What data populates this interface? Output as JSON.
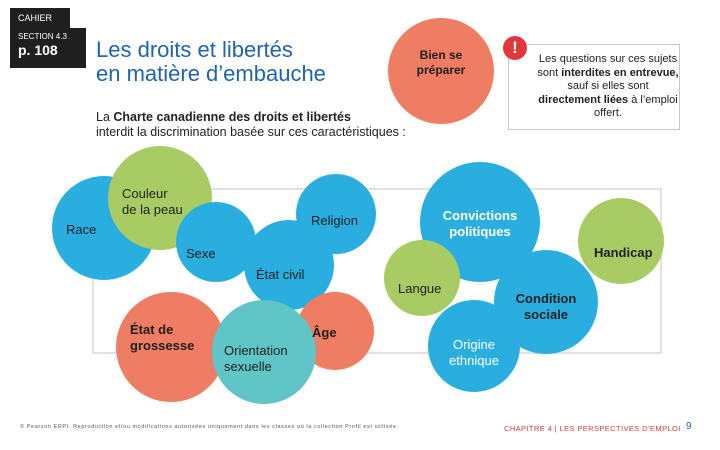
{
  "header": {
    "cahier": "CAHIER",
    "section": "SECTION 4.3",
    "page_ref": "p. 108"
  },
  "title": {
    "line1": "Les droits et libertés",
    "line2": "en matière d’embauche"
  },
  "prep_badge": {
    "line1": "Bien se",
    "line2": "préparer"
  },
  "warning": {
    "icon_glyph": "!",
    "p1": "Les questions sur ces sujets sont ",
    "b1": "interdites en entrevue,",
    "p2": " sauf si elles sont ",
    "b2": "directement liées",
    "p3": " à l’emploi offert."
  },
  "intro": {
    "p1": "La ",
    "bold": "Charte canadienne des droits et libertés",
    "p2": "interdit la discrimination basée sur ces caractéristiques :"
  },
  "characteristics": {
    "race": "Race",
    "couleur_1": "Couleur",
    "couleur_2": "de la peau",
    "religion": "Religion",
    "convictions_1": "Convictions",
    "convictions_2": "politiques",
    "sexe": "Sexe",
    "handicap": "Handicap",
    "etat_civil": "État civil",
    "langue": "Langue",
    "condition_1": "Condition",
    "condition_2": "sociale",
    "grossesse_1": "État de",
    "grossesse_2": "grossesse",
    "age": "Âge",
    "orientation_1": "Orientation",
    "orientation_2": "sexuelle",
    "origine_1": "Origine",
    "origine_2": "ethnique"
  },
  "colors": {
    "blue": "#2aaee0",
    "green": "#a8cc63",
    "salmon": "#ee7d63",
    "teal": "#5fc5c6",
    "red": "#e0373d",
    "title_blue": "#1e63b4"
  },
  "footer": {
    "left": "© Pearson ERPI. Reproduction et/ou modifications autorisées uniquement dans les classes où la collection Profil est utilisée.",
    "right": "CHAPITRE 4 | LES PERSPECTIVES D’EMPLOI",
    "page": "9"
  }
}
